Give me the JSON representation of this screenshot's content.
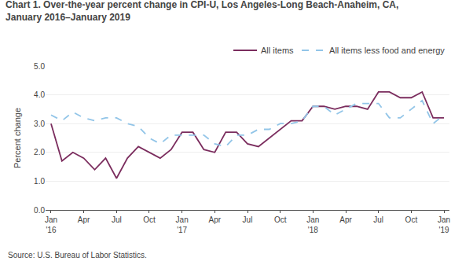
{
  "chart_data": {
    "type": "line",
    "title": "Chart 1. Over-the-year percent change in CPI-U, Los Angeles-Long Beach-Anaheim, CA,\nJanuary 2016–January 2019",
    "ylabel": "Percent change",
    "annotations": [
      "Source: U.S. Bureau of Labor Statistics."
    ],
    "categories": [
      "Jan\n'16",
      null,
      null,
      "Apr",
      null,
      null,
      "Jul",
      null,
      null,
      "Oct",
      null,
      null,
      "Jan\n'17",
      null,
      null,
      "Apr",
      null,
      null,
      "Jul",
      null,
      null,
      "Oct",
      null,
      null,
      "Jan\n'18",
      null,
      null,
      "Apr",
      null,
      null,
      "Jul",
      null,
      null,
      "Oct",
      null,
      null,
      "Jan\n'19"
    ],
    "series": [
      {
        "name": "All items",
        "color": "#7B2D5E",
        "line_style": "solid",
        "values": [
          3.0,
          1.7,
          2.0,
          1.8,
          1.4,
          1.8,
          1.1,
          1.8,
          2.2,
          2.0,
          1.8,
          2.1,
          2.7,
          2.7,
          2.1,
          2.0,
          2.7,
          2.7,
          2.3,
          2.2,
          2.5,
          2.8,
          3.1,
          3.1,
          3.6,
          3.6,
          3.5,
          3.6,
          3.6,
          3.5,
          4.1,
          4.1,
          3.9,
          3.9,
          4.1,
          3.2,
          3.2
        ]
      },
      {
        "name": "All items less food and energy",
        "color": "#92C5E8",
        "line_style": "dashed",
        "values": [
          3.3,
          3.1,
          3.4,
          3.2,
          3.1,
          3.2,
          3.2,
          3.0,
          2.9,
          2.5,
          2.3,
          2.6,
          2.6,
          2.6,
          2.6,
          2.3,
          2.2,
          2.6,
          2.6,
          2.8,
          2.8,
          3.0,
          3.0,
          3.1,
          3.6,
          3.6,
          3.3,
          3.5,
          3.7,
          3.7,
          3.7,
          3.2,
          3.2,
          3.5,
          3.8,
          3.0,
          3.3
        ]
      }
    ],
    "ylim": [
      0.0,
      5.0
    ],
    "yticks": [
      {
        "value": 0,
        "label": "0.0"
      },
      {
        "value": 1,
        "label": "1.0"
      },
      {
        "value": 2,
        "label": "2.0"
      },
      {
        "value": 3,
        "label": "3.0"
      },
      {
        "value": 4,
        "label": "4.0"
      },
      {
        "value": 5,
        "label": "5.0"
      }
    ],
    "grid": true,
    "legend": "upper right"
  }
}
